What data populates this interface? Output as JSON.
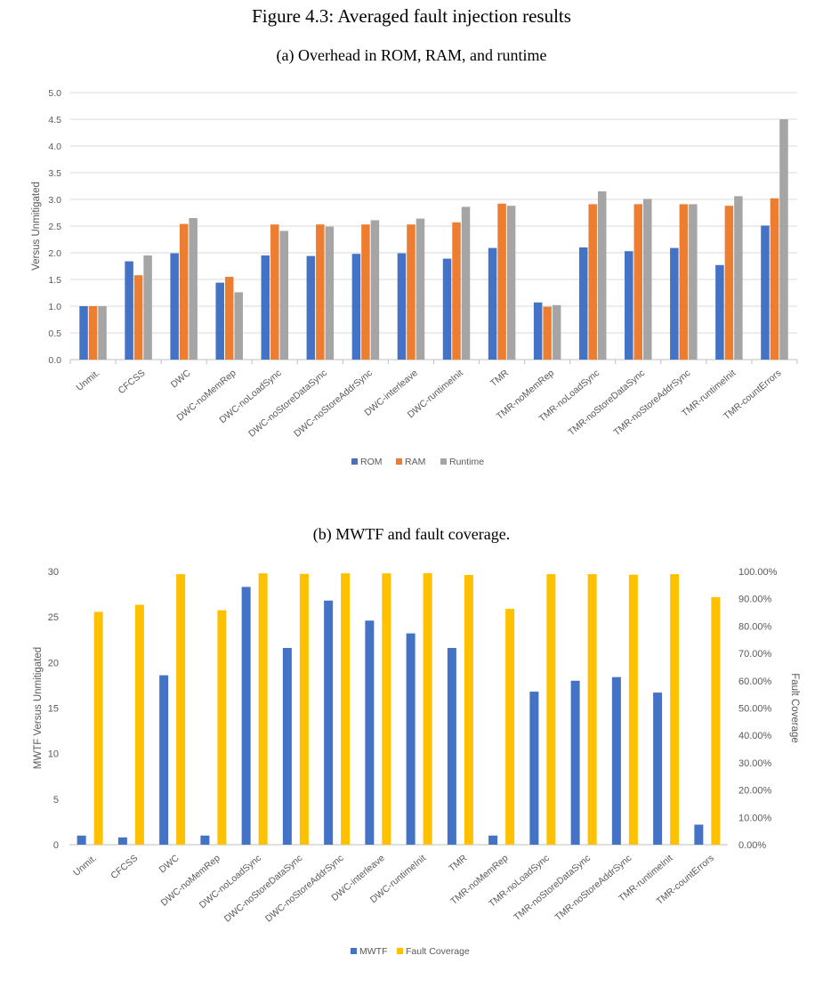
{
  "figure_title": "Figure 4.3: Averaged fault injection results",
  "panel_a_caption": "(a) Overhead in ROM, RAM, and runtime",
  "panel_b_caption": "(b) MWTF and fault coverage.",
  "colors": {
    "rom": "#4472C4",
    "ram": "#ED7D31",
    "runtime": "#A5A5A5",
    "mwtf": "#4472C4",
    "coverage": "#FFC000",
    "grid": "#D9D9D9",
    "axis": "#BFBFBF",
    "text": "#595959"
  },
  "chart_data": [
    {
      "type": "bar",
      "title": "",
      "xlabel": "",
      "ylabel": "Versus Unmitigated",
      "ylim": [
        0,
        5
      ],
      "yticks": [
        "0.0",
        "0.5",
        "1.0",
        "1.5",
        "2.0",
        "2.5",
        "3.0",
        "3.5",
        "4.0",
        "4.5",
        "5.0"
      ],
      "grid": true,
      "legend_position": "bottom",
      "categories": [
        "Unmit.",
        "CFCSS",
        "DWC",
        "DWC-noMemRep",
        "DWC-noLoadSync",
        "DWC-noStoreDataSync",
        "DWC-noStoreAddrSync",
        "DWC-interleave",
        "DWC-runtimeInit",
        "TMR",
        "TMR-noMemRep",
        "TMR-noLoadSync",
        "TMR-noStoreDataSync",
        "TMR-noStoreAddrSync",
        "TMR-runtimeInit",
        "TMR-countErrors"
      ],
      "series": [
        {
          "name": "ROM",
          "color": "#4472C4",
          "values": [
            1.0,
            1.84,
            1.99,
            1.44,
            1.95,
            1.94,
            1.98,
            1.99,
            1.89,
            2.09,
            1.07,
            2.1,
            2.03,
            2.09,
            1.77,
            2.51
          ]
        },
        {
          "name": "RAM",
          "color": "#ED7D31",
          "values": [
            1.0,
            1.58,
            2.54,
            1.55,
            2.53,
            2.53,
            2.53,
            2.53,
            2.57,
            2.92,
            0.99,
            2.91,
            2.91,
            2.91,
            2.88,
            3.02
          ]
        },
        {
          "name": "Runtime",
          "color": "#A5A5A5",
          "values": [
            1.0,
            1.95,
            2.65,
            1.26,
            2.41,
            2.49,
            2.61,
            2.64,
            2.86,
            2.88,
            1.02,
            3.15,
            3.01,
            2.91,
            3.06,
            4.5
          ]
        }
      ]
    },
    {
      "type": "bar",
      "title": "",
      "xlabel": "",
      "ylabel": "MWTF Versus Unmitigated",
      "y2label": "Fault Coverage",
      "ylim": [
        0,
        30
      ],
      "y2lim": [
        0,
        100
      ],
      "yticks": [
        "0",
        "5",
        "10",
        "15",
        "20",
        "25",
        "30"
      ],
      "y2ticks": [
        "0.00%",
        "10.00%",
        "20.00%",
        "30.00%",
        "40.00%",
        "50.00%",
        "60.00%",
        "70.00%",
        "80.00%",
        "90.00%",
        "100.00%"
      ],
      "grid": false,
      "legend_position": "bottom",
      "categories": [
        "Unmit.",
        "CFCSS",
        "DWC",
        "DWC-noMemRep",
        "DWC-noLoadSync",
        "DWC-noStoreDataSync",
        "DWC-noStoreAddrSync",
        "DWC-interleave",
        "DWC-runtimeInit",
        "TMR",
        "TMR-noMemRep",
        "TMR-noLoadSync",
        "TMR-noStoreDataSync",
        "TMR-noStoreAddrSync",
        "TMR-runtimeInit",
        "TMR-countErrors"
      ],
      "series": [
        {
          "name": "MWTF",
          "color": "#4472C4",
          "axis": "left",
          "values": [
            1.0,
            0.8,
            18.6,
            1.0,
            28.3,
            21.6,
            26.8,
            24.6,
            23.2,
            21.6,
            1.0,
            16.8,
            18.0,
            18.4,
            16.7,
            2.2
          ]
        },
        {
          "name": "Fault Coverage",
          "color": "#FFC000",
          "axis": "right",
          "values": [
            85.2,
            87.8,
            99.0,
            85.8,
            99.3,
            99.1,
            99.3,
            99.3,
            99.4,
            98.7,
            86.3,
            99.0,
            99.0,
            98.8,
            99.0,
            90.6
          ]
        }
      ]
    }
  ]
}
